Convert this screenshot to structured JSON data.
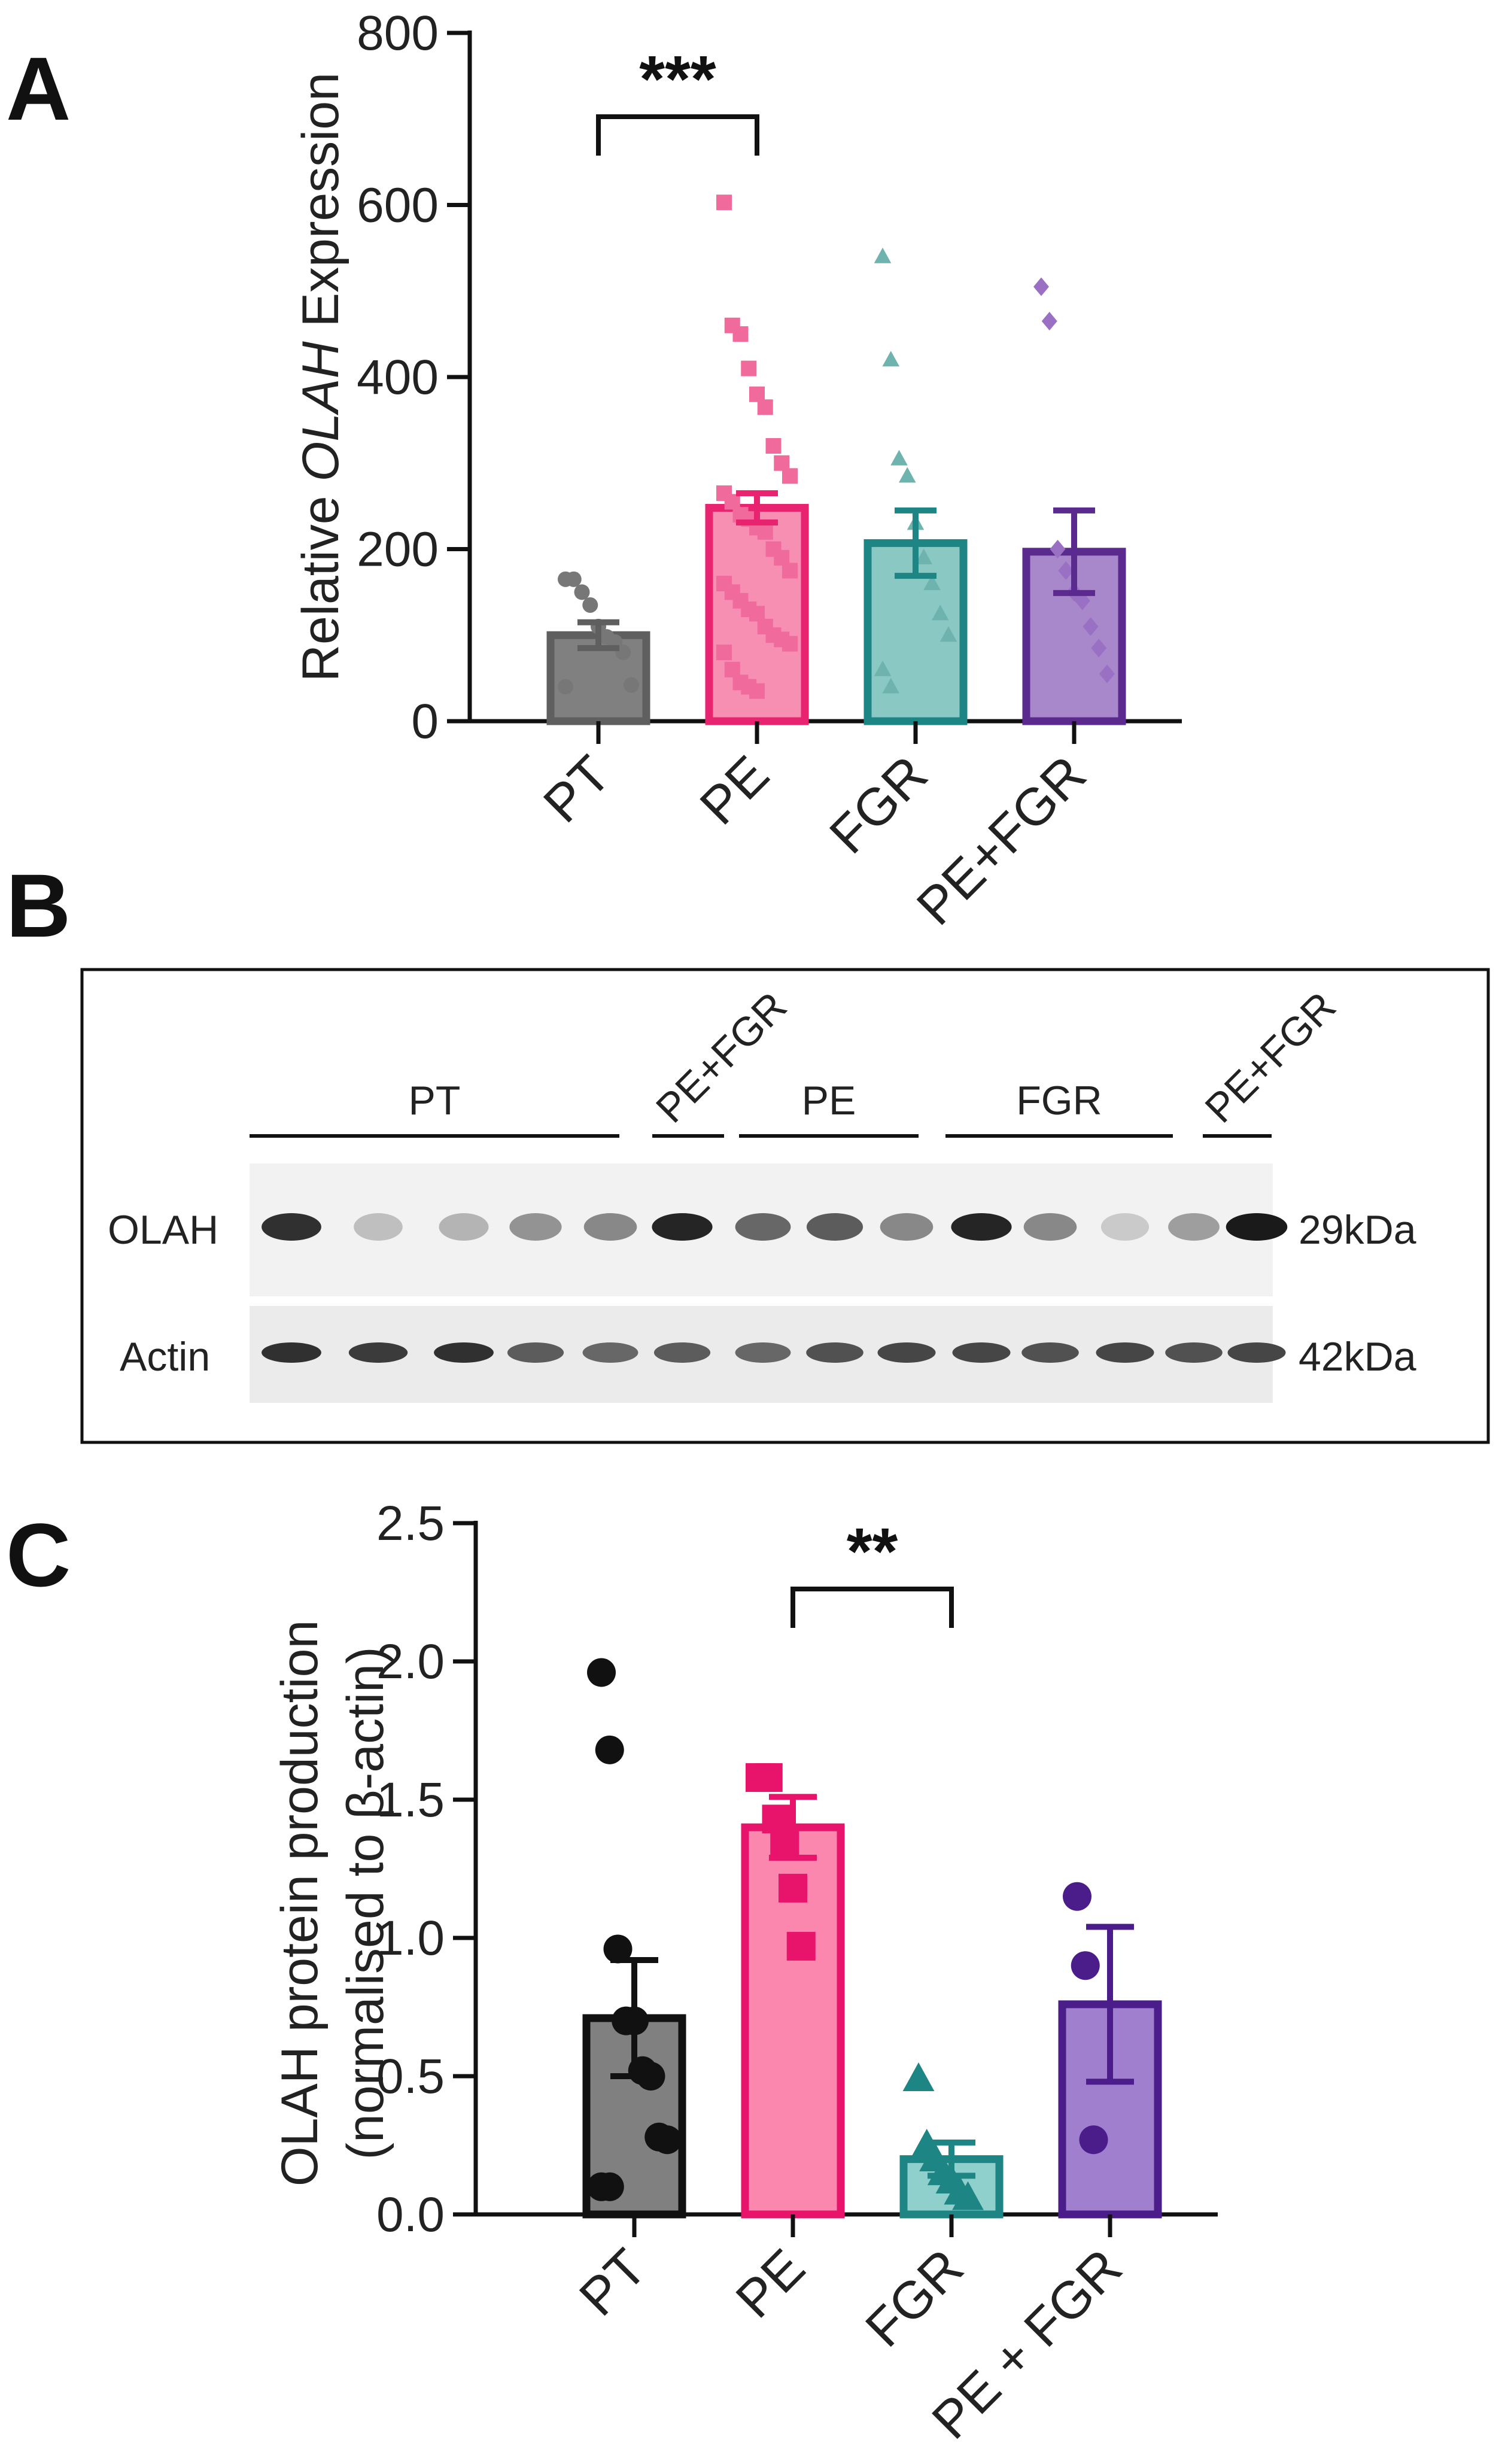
{
  "panels": {
    "a": "A",
    "b": "B",
    "c": "C"
  },
  "chart_data": [
    {
      "type": "bar",
      "panel": "A",
      "ylabel_prefix": "Relative ",
      "ylabel_gene": "OLAH",
      "ylabel_suffix": " Expression",
      "ylim": [
        0,
        800
      ],
      "yticks": [
        0,
        200,
        400,
        600,
        800
      ],
      "categories": [
        "PT",
        "PE",
        "FGR",
        "PE+FGR"
      ],
      "values": [
        100,
        248,
        207,
        197
      ],
      "sem": [
        15,
        17,
        38,
        48
      ],
      "colors": [
        "#5f5f5f",
        "#e8236f",
        "#1e8585",
        "#5b2a8e"
      ],
      "fills": [
        "#808080",
        "#f78fb3",
        "#89c8c3",
        "#a887cb"
      ],
      "markers": [
        "circle",
        "square",
        "triangle",
        "diamond"
      ],
      "points": [
        [
          165,
          165,
          150,
          135,
          110,
          98,
          92,
          80,
          42,
          40
        ],
        [
          603,
          460,
          450,
          410,
          380,
          365,
          320,
          300,
          285,
          265,
          255,
          240,
          235,
          225,
          220,
          200,
          190,
          175,
          160,
          150,
          140,
          130,
          125,
          110,
          100,
          95,
          90,
          80,
          60,
          45,
          40,
          35
        ],
        [
          540,
          420,
          305,
          285,
          230,
          190,
          160,
          125,
          100,
          60,
          40
        ],
        [
          505,
          465,
          200,
          175,
          150,
          140,
          110,
          85,
          55
        ]
      ],
      "significance": [
        {
          "from": 0,
          "to": 1,
          "label": "***"
        }
      ]
    },
    {
      "type": "table",
      "panel": "B",
      "group_labels": [
        "PT",
        "PE+FGR",
        "PE",
        "FGR",
        "PE+FGR"
      ],
      "rows": [
        {
          "label": "OLAH",
          "size": "29kDa",
          "intensities": [
            0.85,
            0.2,
            0.25,
            0.4,
            0.45,
            0.9,
            0.6,
            0.65,
            0.45,
            0.9,
            0.45,
            0.15,
            0.35,
            0.95
          ]
        },
        {
          "label": "Actin",
          "size": "42kDa",
          "intensities": [
            0.85,
            0.8,
            0.85,
            0.65,
            0.6,
            0.65,
            0.6,
            0.7,
            0.75,
            0.75,
            0.7,
            0.75,
            0.7,
            0.75
          ]
        }
      ]
    },
    {
      "type": "bar",
      "panel": "C",
      "ylabel_line1": "OLAH protein production",
      "ylabel_line2": "(normalised to β-actin)",
      "ylim": [
        0,
        2.5
      ],
      "yticks": [
        "0.0",
        "0.5",
        "1.0",
        "1.5",
        "2.0",
        "2.5"
      ],
      "categories": [
        "PT",
        "PE",
        "FGR",
        "PE + FGR"
      ],
      "values": [
        0.71,
        1.4,
        0.2,
        0.76
      ],
      "sem": [
        0.21,
        0.11,
        0.06,
        0.28
      ],
      "colors": [
        "#111111",
        "#e8136a",
        "#1e8585",
        "#4a1d8a"
      ],
      "fills": [
        "#808080",
        "#fb86ae",
        "#8fd0cc",
        "#a07fcf"
      ],
      "markers": [
        "circle",
        "square",
        "triangle",
        "circle"
      ],
      "points": [
        [
          1.96,
          1.68,
          0.96,
          0.7,
          0.7,
          0.52,
          0.5,
          0.28,
          0.27,
          0.1,
          0.1
        ],
        [
          1.58,
          1.58,
          1.43,
          1.35,
          1.18,
          0.97
        ],
        [
          0.49,
          0.25,
          0.2,
          0.15,
          0.12,
          0.08,
          0.06
        ],
        [
          1.15,
          0.9,
          0.27
        ]
      ],
      "significance": [
        {
          "from": 1,
          "to": 2,
          "label": "**"
        }
      ]
    }
  ]
}
